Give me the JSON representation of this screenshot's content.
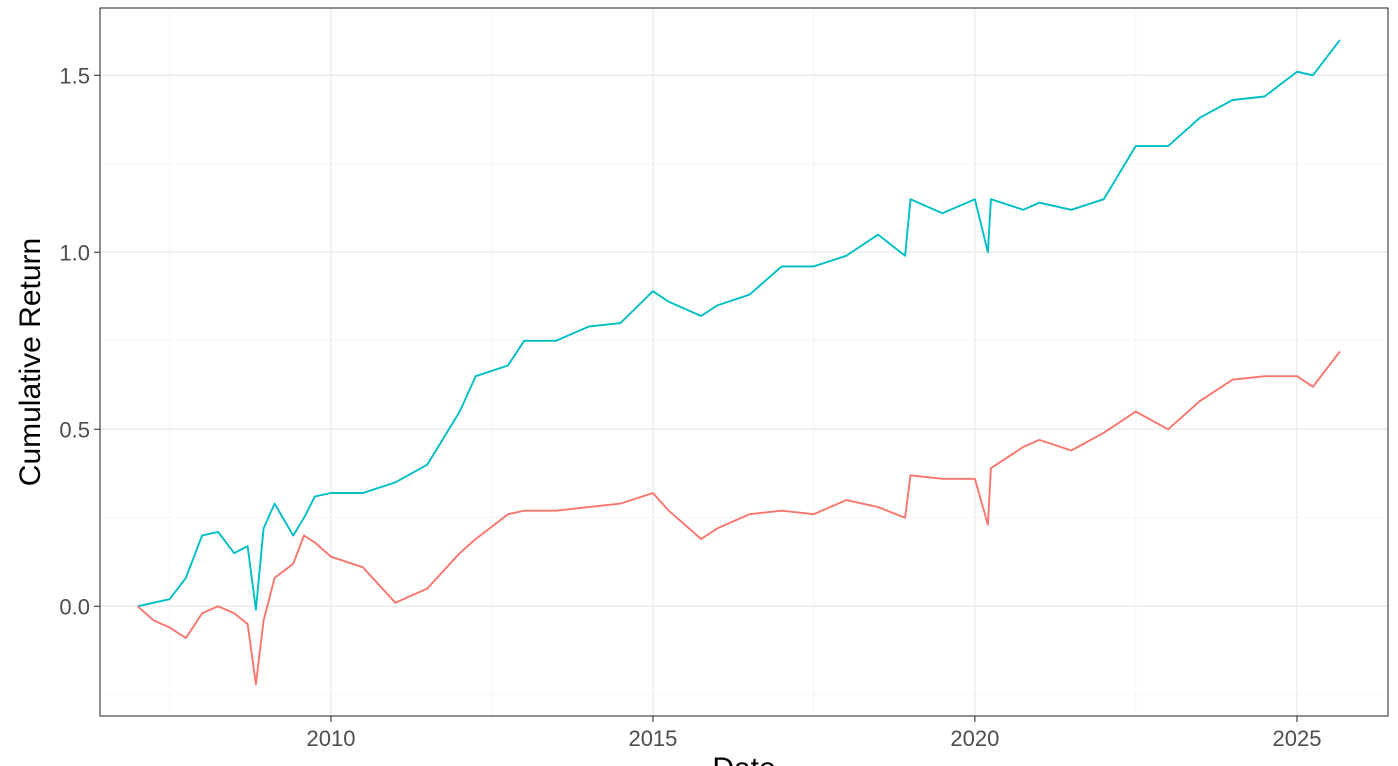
{
  "chart_data": {
    "type": "line",
    "title": "",
    "xlabel": "Date",
    "ylabel": "Cumulative Return",
    "xlim": [
      "2006-06-01",
      "2026-06-01"
    ],
    "ylim": [
      -0.31,
      1.69
    ],
    "x_ticks": [
      {
        "date": "2010-01-01",
        "label": "2010"
      },
      {
        "date": "2015-01-01",
        "label": "2015"
      },
      {
        "date": "2020-01-01",
        "label": "2020"
      },
      {
        "date": "2025-01-01",
        "label": "2025"
      }
    ],
    "y_ticks": [
      {
        "value": 0.0,
        "label": "0.0"
      },
      {
        "value": 0.5,
        "label": "0.5"
      },
      {
        "value": 1.0,
        "label": "1.0"
      },
      {
        "value": 1.5,
        "label": "1.5"
      }
    ],
    "grid": true,
    "legend": "none",
    "series": [
      {
        "color": "#00BFC4",
        "points": [
          [
            "2007-01-01",
            0.0
          ],
          [
            "2007-04-01",
            0.01
          ],
          [
            "2007-07-01",
            0.02
          ],
          [
            "2007-10-01",
            0.08
          ],
          [
            "2008-01-01",
            0.2
          ],
          [
            "2008-04-01",
            0.21
          ],
          [
            "2008-07-01",
            0.15
          ],
          [
            "2008-09-15",
            0.17
          ],
          [
            "2008-11-01",
            -0.01
          ],
          [
            "2008-12-15",
            0.22
          ],
          [
            "2009-02-15",
            0.29
          ],
          [
            "2009-06-01",
            0.2
          ],
          [
            "2009-08-01",
            0.25
          ],
          [
            "2009-10-01",
            0.31
          ],
          [
            "2010-01-01",
            0.32
          ],
          [
            "2010-07-01",
            0.32
          ],
          [
            "2011-01-01",
            0.35
          ],
          [
            "2011-07-01",
            0.4
          ],
          [
            "2012-01-01",
            0.55
          ],
          [
            "2012-04-01",
            0.65
          ],
          [
            "2012-10-01",
            0.68
          ],
          [
            "2013-01-01",
            0.75
          ],
          [
            "2013-07-01",
            0.75
          ],
          [
            "2014-01-01",
            0.79
          ],
          [
            "2014-07-01",
            0.8
          ],
          [
            "2015-01-01",
            0.89
          ],
          [
            "2015-04-01",
            0.86
          ],
          [
            "2015-10-01",
            0.82
          ],
          [
            "2016-01-01",
            0.85
          ],
          [
            "2016-07-01",
            0.88
          ],
          [
            "2017-01-01",
            0.96
          ],
          [
            "2017-07-01",
            0.96
          ],
          [
            "2018-01-01",
            0.99
          ],
          [
            "2018-07-01",
            1.05
          ],
          [
            "2018-12-01",
            0.99
          ],
          [
            "2019-01-01",
            1.15
          ],
          [
            "2019-07-01",
            1.11
          ],
          [
            "2020-01-01",
            1.15
          ],
          [
            "2020-03-15",
            1.0
          ],
          [
            "2020-04-01",
            1.15
          ],
          [
            "2020-10-01",
            1.12
          ],
          [
            "2021-01-01",
            1.14
          ],
          [
            "2021-07-01",
            1.12
          ],
          [
            "2022-01-01",
            1.15
          ],
          [
            "2022-07-01",
            1.3
          ],
          [
            "2023-01-01",
            1.3
          ],
          [
            "2023-07-01",
            1.38
          ],
          [
            "2024-01-01",
            1.43
          ],
          [
            "2024-07-01",
            1.44
          ],
          [
            "2025-01-01",
            1.51
          ],
          [
            "2025-04-01",
            1.5
          ],
          [
            "2025-09-01",
            1.6
          ]
        ]
      },
      {
        "color": "#F8766D",
        "points": [
          [
            "2007-01-01",
            0.0
          ],
          [
            "2007-04-01",
            -0.04
          ],
          [
            "2007-07-01",
            -0.06
          ],
          [
            "2007-10-01",
            -0.09
          ],
          [
            "2008-01-01",
            -0.02
          ],
          [
            "2008-04-01",
            0.0
          ],
          [
            "2008-07-01",
            -0.02
          ],
          [
            "2008-09-15",
            -0.05
          ],
          [
            "2008-11-01",
            -0.22
          ],
          [
            "2008-12-15",
            -0.04
          ],
          [
            "2009-02-15",
            0.08
          ],
          [
            "2009-06-01",
            0.12
          ],
          [
            "2009-08-01",
            0.2
          ],
          [
            "2009-10-01",
            0.18
          ],
          [
            "2010-01-01",
            0.14
          ],
          [
            "2010-07-01",
            0.11
          ],
          [
            "2011-01-01",
            0.01
          ],
          [
            "2011-07-01",
            0.05
          ],
          [
            "2012-01-01",
            0.15
          ],
          [
            "2012-04-01",
            0.19
          ],
          [
            "2012-10-01",
            0.26
          ],
          [
            "2013-01-01",
            0.27
          ],
          [
            "2013-07-01",
            0.27
          ],
          [
            "2014-01-01",
            0.28
          ],
          [
            "2014-07-01",
            0.29
          ],
          [
            "2015-01-01",
            0.32
          ],
          [
            "2015-04-01",
            0.27
          ],
          [
            "2015-10-01",
            0.19
          ],
          [
            "2016-01-01",
            0.22
          ],
          [
            "2016-07-01",
            0.26
          ],
          [
            "2017-01-01",
            0.27
          ],
          [
            "2017-07-01",
            0.26
          ],
          [
            "2018-01-01",
            0.3
          ],
          [
            "2018-07-01",
            0.28
          ],
          [
            "2018-12-01",
            0.25
          ],
          [
            "2019-01-01",
            0.37
          ],
          [
            "2019-07-01",
            0.36
          ],
          [
            "2020-01-01",
            0.36
          ],
          [
            "2020-03-15",
            0.23
          ],
          [
            "2020-04-01",
            0.39
          ],
          [
            "2020-10-01",
            0.45
          ],
          [
            "2021-01-01",
            0.47
          ],
          [
            "2021-07-01",
            0.44
          ],
          [
            "2022-01-01",
            0.49
          ],
          [
            "2022-07-01",
            0.55
          ],
          [
            "2023-01-01",
            0.5
          ],
          [
            "2023-07-01",
            0.58
          ],
          [
            "2024-01-01",
            0.64
          ],
          [
            "2024-07-01",
            0.65
          ],
          [
            "2025-01-01",
            0.65
          ],
          [
            "2025-04-01",
            0.62
          ],
          [
            "2025-09-01",
            0.72
          ]
        ]
      }
    ]
  }
}
